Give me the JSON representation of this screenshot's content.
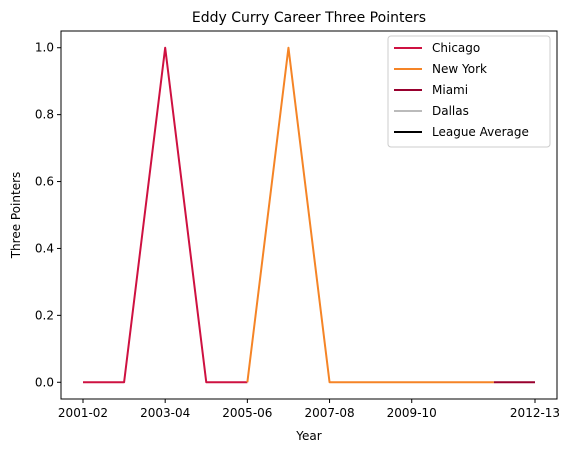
{
  "chart_data": {
    "type": "line",
    "title": "Eddy Curry Career Three Pointers",
    "xlabel": "Year",
    "ylabel": "Three Pointers",
    "x_tick_labels": [
      "2001-02",
      "2003-04",
      "2005-06",
      "2007-08",
      "2009-10",
      "2012-13"
    ],
    "y_ticks": [
      0.0,
      0.2,
      0.4,
      0.6,
      0.8,
      1.0
    ],
    "y_tick_labels": [
      "0.0",
      "0.2",
      "0.4",
      "0.6",
      "0.8",
      "1.0"
    ],
    "ylim": [
      -0.05,
      1.05
    ],
    "legend_position": "upper right",
    "grid": false,
    "series": [
      {
        "name": "Chicago",
        "color": "#ce1141",
        "points": [
          {
            "x": "2001-02",
            "y": 0
          },
          {
            "x": "2002-03",
            "y": 0
          },
          {
            "x": "2003-04",
            "y": 1
          },
          {
            "x": "2004-05",
            "y": 0
          },
          {
            "x": "2005-06",
            "y": 0
          }
        ]
      },
      {
        "name": "New York",
        "color": "#f58426",
        "points": [
          {
            "x": "2005-06",
            "y": 0
          },
          {
            "x": "2006-07",
            "y": 1
          },
          {
            "x": "2007-08",
            "y": 0
          },
          {
            "x": "2008-09",
            "y": 0
          },
          {
            "x": "2009-10",
            "y": 0
          },
          {
            "x": "2010-11",
            "y": 0
          },
          {
            "x": "2011-12",
            "y": 0
          }
        ]
      },
      {
        "name": "Miami",
        "color": "#98002e",
        "points": [
          {
            "x": "2011-12",
            "y": 0
          },
          {
            "x": "2012-13",
            "y": 0
          }
        ]
      },
      {
        "name": "Dallas",
        "color": "#bbbbbb",
        "points": []
      },
      {
        "name": "League Average",
        "color": "#000000",
        "points": []
      }
    ]
  }
}
